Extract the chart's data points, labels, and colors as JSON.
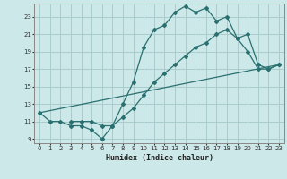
{
  "xlabel": "Humidex (Indice chaleur)",
  "bg_color": "#cce8e8",
  "grid_color": "#aacccc",
  "line_color": "#2a7070",
  "xlim": [
    -0.5,
    23.5
  ],
  "ylim": [
    8.5,
    24.5
  ],
  "xticks": [
    0,
    1,
    2,
    3,
    4,
    5,
    6,
    7,
    8,
    9,
    10,
    11,
    12,
    13,
    14,
    15,
    16,
    17,
    18,
    19,
    20,
    21,
    22,
    23
  ],
  "yticks": [
    9,
    11,
    13,
    15,
    17,
    19,
    21,
    23
  ],
  "line1_x": [
    0,
    1,
    2,
    3,
    4,
    5,
    6,
    7,
    8,
    9,
    10,
    11,
    12,
    13,
    14,
    15,
    16,
    17,
    18,
    19,
    20,
    21,
    22,
    23
  ],
  "line1_y": [
    12.0,
    11.0,
    11.0,
    10.5,
    10.5,
    10.0,
    9.0,
    10.5,
    13.0,
    15.5,
    19.5,
    21.5,
    22.0,
    23.5,
    24.2,
    23.5,
    24.0,
    22.5,
    23.0,
    20.5,
    19.0,
    17.0,
    17.0,
    17.5
  ],
  "line2_x": [
    3,
    4,
    5,
    6,
    7,
    8,
    9,
    10,
    11,
    12,
    13,
    14,
    15,
    16,
    17,
    18,
    19,
    20,
    21,
    22,
    23
  ],
  "line2_y": [
    11.0,
    11.0,
    11.0,
    10.5,
    10.5,
    11.5,
    12.5,
    14.0,
    15.5,
    16.5,
    17.5,
    18.5,
    19.5,
    20.0,
    21.0,
    21.5,
    20.5,
    21.0,
    17.5,
    17.0,
    17.5
  ],
  "line3_x": [
    0,
    23
  ],
  "line3_y": [
    12.0,
    17.5
  ]
}
